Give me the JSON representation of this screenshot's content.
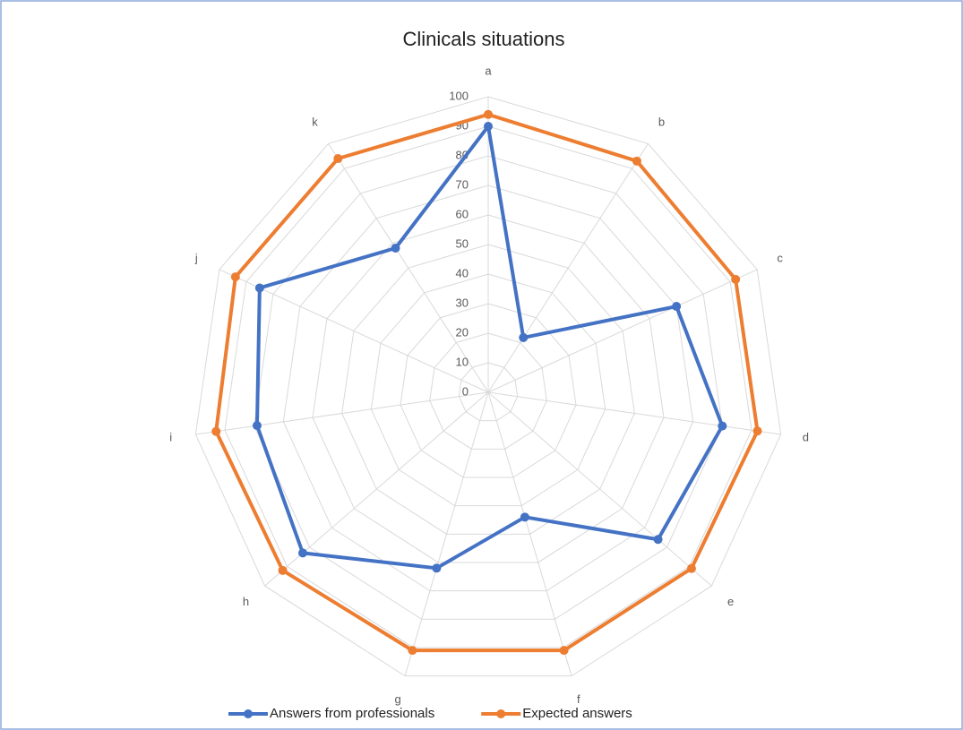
{
  "chart_data": {
    "type": "radar",
    "title": "Clinicals situations",
    "categories": [
      "a",
      "b",
      "c",
      "d",
      "e",
      "f",
      "g",
      "h",
      "i",
      "j",
      "k"
    ],
    "series": [
      {
        "name": "Answers from professionals",
        "color": "#4472c4",
        "values": [
          90,
          22,
          70,
          80,
          76,
          44,
          62,
          83,
          79,
          85,
          58
        ]
      },
      {
        "name": "Expected answers",
        "color": "#ed7d31",
        "values": [
          94,
          93,
          92,
          92,
          91,
          91,
          91,
          92,
          93,
          94,
          94
        ]
      }
    ],
    "ylim": [
      0,
      100
    ],
    "yticks": [
      0,
      10,
      20,
      30,
      40,
      50,
      60,
      70,
      80,
      90,
      100
    ],
    "grid": true,
    "legend": "bottom"
  }
}
